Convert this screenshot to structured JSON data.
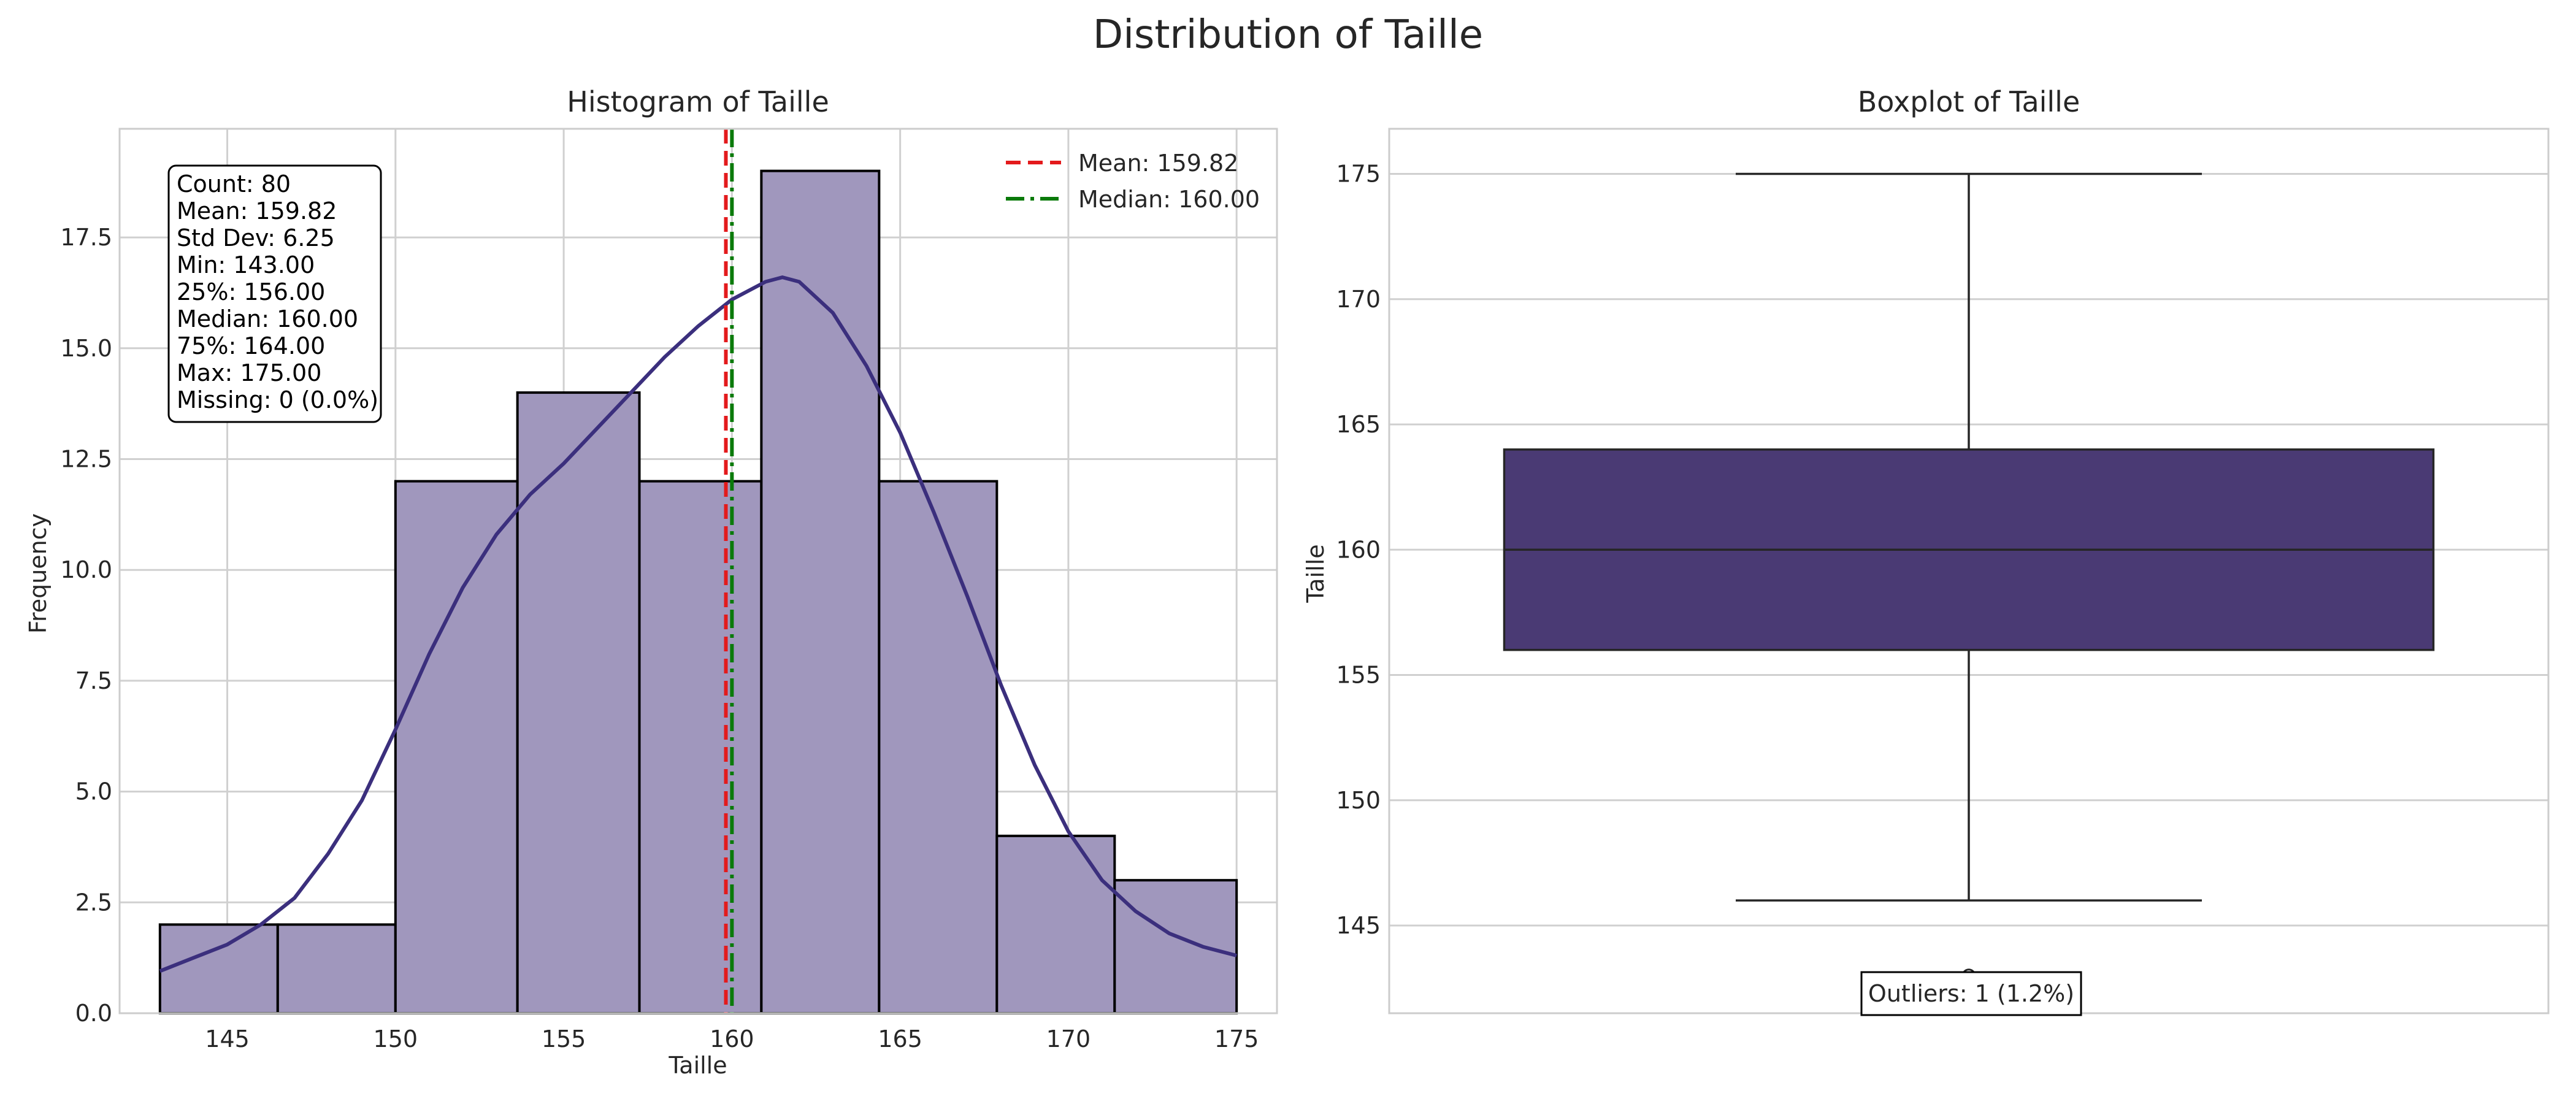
{
  "figure": {
    "title": "Distribution of Taille"
  },
  "colors": {
    "hist_fill": "#a097bd",
    "hist_edge": "#000000",
    "kde": "#3b2f7d",
    "mean_line": "#e31a1c",
    "median_line": "#0a7a0a",
    "box_fill": "#4a3a74",
    "box_edge": "#262626"
  },
  "chart_data": [
    {
      "type": "bar",
      "subtype": "histogram-with-kde",
      "title": "Histogram of Taille",
      "xlabel": "Taille",
      "ylabel": "Frequency",
      "xlim": [
        141.8,
        176.2
      ],
      "ylim": [
        0,
        19.95
      ],
      "xticks": [
        145,
        150,
        155,
        160,
        165,
        170,
        175
      ],
      "yticks": [
        0.0,
        2.5,
        5.0,
        7.5,
        10.0,
        12.5,
        15.0,
        17.5
      ],
      "grid": true,
      "bins": [
        {
          "x0": 143.0,
          "x1": 146.5,
          "value": 2
        },
        {
          "x0": 146.5,
          "x1": 150.0,
          "value": 2
        },
        {
          "x0": 150.0,
          "x1": 153.625,
          "value": 12
        },
        {
          "x0": 153.625,
          "x1": 157.25,
          "value": 14
        },
        {
          "x0": 157.25,
          "x1": 160.875,
          "value": 12
        },
        {
          "x0": 160.875,
          "x1": 164.375,
          "value": 19
        },
        {
          "x0": 164.375,
          "x1": 167.875,
          "value": 12
        },
        {
          "x0": 167.875,
          "x1": 171.375,
          "value": 4
        },
        {
          "x0": 171.375,
          "x1": 175.0,
          "value": 3
        }
      ],
      "kde": {
        "x": [
          143,
          144,
          145,
          146,
          147,
          148,
          149,
          150,
          151,
          152,
          153,
          154,
          155,
          156,
          157,
          158,
          159,
          160,
          161,
          161.5,
          162,
          163,
          164,
          165,
          166,
          167,
          168,
          169,
          170,
          171,
          172,
          173,
          174,
          175
        ],
        "y": [
          0.95,
          1.25,
          1.55,
          2.0,
          2.6,
          3.6,
          4.8,
          6.4,
          8.1,
          9.6,
          10.8,
          11.7,
          12.4,
          13.2,
          14.0,
          14.8,
          15.5,
          16.1,
          16.5,
          16.6,
          16.5,
          15.8,
          14.6,
          13.1,
          11.3,
          9.4,
          7.4,
          5.6,
          4.1,
          3.0,
          2.3,
          1.8,
          1.5,
          1.3
        ]
      },
      "mean": 159.82,
      "median": 160.0,
      "legend": {
        "position": "top-right",
        "entries": [
          "Mean: 159.82",
          "Median: 160.00"
        ]
      },
      "stats_box": [
        "Count: 80",
        "Mean: 159.82",
        "Std Dev: 6.25",
        "Min: 143.00",
        "25%: 156.00",
        "Median: 160.00",
        "75%: 164.00",
        "Max: 175.00",
        "Missing: 0 (0.0%)"
      ]
    },
    {
      "type": "box",
      "title": "Boxplot of Taille",
      "ylabel": "Taille",
      "ylim": [
        141.5,
        176.8
      ],
      "yticks": [
        145,
        150,
        155,
        160,
        165,
        170,
        175
      ],
      "grid": true,
      "whisker_low": 146,
      "q1": 156,
      "median": 160,
      "q3": 164,
      "whisker_high": 175,
      "outliers": [
        143
      ],
      "annotation": "Outliers: 1 (1.2%)"
    }
  ]
}
